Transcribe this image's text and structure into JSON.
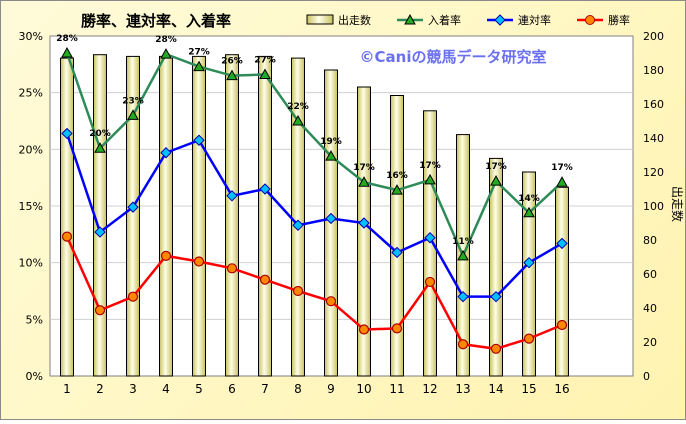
{
  "chart_data": {
    "type": "bar",
    "title": "勝率、連対率、入着率",
    "watermark": "©Caniの競馬データ研究室",
    "categories": [
      "1",
      "2",
      "3",
      "4",
      "5",
      "6",
      "7",
      "8",
      "9",
      "10",
      "11",
      "12",
      "13",
      "14",
      "15",
      "16"
    ],
    "y_left": {
      "ticks": [
        "0%",
        "5%",
        "10%",
        "15%",
        "20%",
        "25%",
        "30%"
      ],
      "ylim": [
        0,
        30
      ]
    },
    "y_right": {
      "label": "出走数",
      "ticks": [
        "0",
        "20",
        "40",
        "60",
        "80",
        "100",
        "120",
        "140",
        "160",
        "180",
        "200"
      ],
      "ylim": [
        0,
        200
      ]
    },
    "grid": true,
    "legend_position": "top",
    "series": [
      {
        "name": "出走数",
        "kind": "bar",
        "axis": "right",
        "color": "#e6e08a",
        "values": [
          187,
          189,
          188,
          188,
          188,
          189,
          188,
          187,
          180,
          170,
          165,
          156,
          142,
          128,
          120,
          111
        ]
      },
      {
        "name": "入着率",
        "kind": "line",
        "axis": "left",
        "color": "#2e8b57",
        "marker_color": "#22aa22",
        "values": [
          28.5,
          20.1,
          23.0,
          28.4,
          27.3,
          26.5,
          26.6,
          22.5,
          19.4,
          17.1,
          16.4,
          17.3,
          10.6,
          17.2,
          14.4,
          17.1
        ],
        "labels": [
          "28%",
          "20%",
          "23%",
          "28%",
          "27%",
          "26%",
          "27%",
          "22%",
          "19%",
          "17%",
          "16%",
          "17%",
          "11%",
          "17%",
          "14%",
          "17%"
        ]
      },
      {
        "name": "連対率",
        "kind": "line",
        "axis": "left",
        "color": "#0000ff",
        "marker_color": "#00c0ff",
        "values": [
          21.4,
          12.7,
          14.9,
          19.7,
          20.8,
          15.9,
          16.5,
          13.3,
          13.9,
          13.5,
          10.9,
          12.2,
          7.0,
          7.0,
          10.0,
          11.7
        ]
      },
      {
        "name": "勝率",
        "kind": "line",
        "axis": "left",
        "color": "#ff0000",
        "marker_color": "#ff8800",
        "values": [
          12.3,
          5.8,
          7.0,
          10.6,
          10.1,
          9.5,
          8.5,
          7.5,
          6.6,
          4.1,
          4.2,
          8.3,
          2.8,
          2.4,
          3.3,
          4.5
        ]
      }
    ]
  }
}
